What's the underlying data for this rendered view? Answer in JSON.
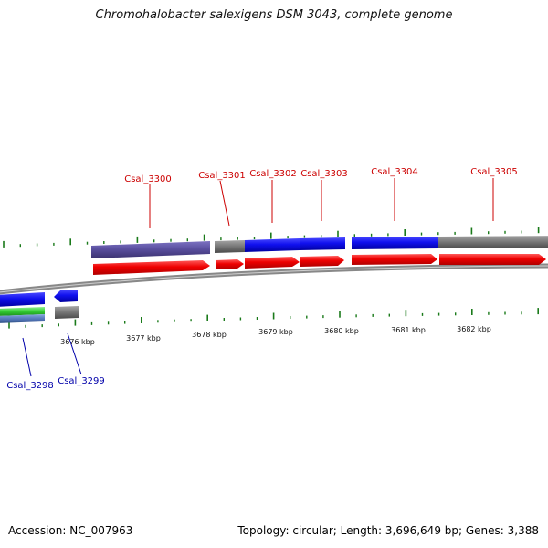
{
  "title": "Chromohalobacter salexigens DSM 3043, complete genome",
  "footer": {
    "accession": "Accession: NC_007963",
    "summary": "Topology: circular; Length: 3,696,649 bp; Genes: 3,388"
  },
  "colors": {
    "forward_label": "#cc0000",
    "reverse_label": "#0000aa",
    "tick": "#1a7a1a",
    "backbone": "#888888"
  },
  "scale_labels": [
    "3676 kbp",
    "3677 kbp",
    "3678 kbp",
    "3679 kbp",
    "3680 kbp",
    "3681 kbp",
    "3682 kbp"
  ],
  "forward_genes": [
    {
      "label": "Csal_3300"
    },
    {
      "label": "Csal_3301"
    },
    {
      "label": "Csal_3302"
    },
    {
      "label": "Csal_3303"
    },
    {
      "label": "Csal_3304"
    },
    {
      "label": "Csal_3305"
    }
  ],
  "reverse_genes": [
    {
      "label": "Csal_3298"
    },
    {
      "label": "Csal_3299"
    }
  ]
}
